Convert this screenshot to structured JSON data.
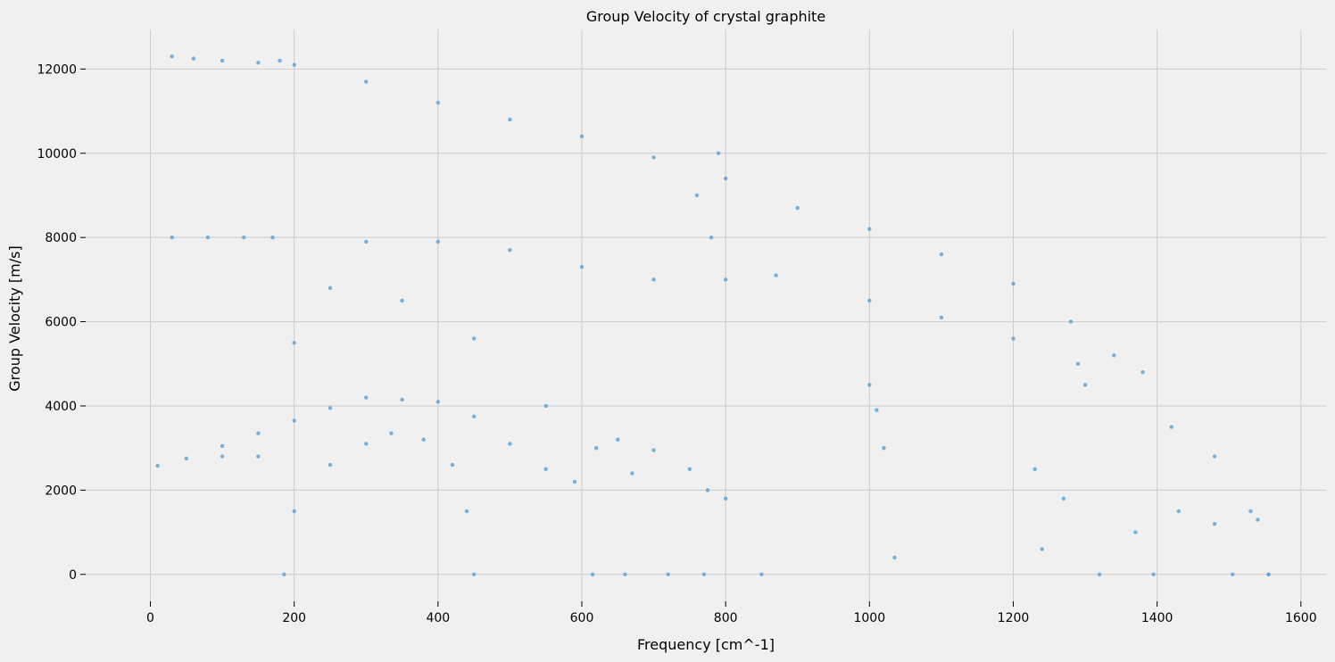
{
  "chart_data": {
    "type": "scatter",
    "title": "Group Velocity of crystal graphite",
    "xlabel": "Frequency [cm^-1]",
    "ylabel": "Group Velocity [m/s]",
    "xlim": [
      -90,
      1635
    ],
    "ylim": [
      -640,
      12940
    ],
    "xticks": [
      0,
      200,
      400,
      600,
      800,
      1000,
      1200,
      1400,
      1600
    ],
    "yticks": [
      0,
      2000,
      4000,
      6000,
      8000,
      10000,
      12000
    ],
    "xtick_labels": [
      "0",
      "200",
      "400",
      "600",
      "800",
      "1000",
      "1200",
      "1400",
      "1600"
    ],
    "ytick_labels": [
      "0",
      "2000",
      "4000",
      "6000",
      "8000",
      "10000",
      "12000"
    ],
    "grid": true,
    "legend": false,
    "marker_color": "#5da5da",
    "series": [
      {
        "values": [
          [
            10,
            2580
          ],
          [
            50,
            2750
          ],
          [
            100,
            3050
          ],
          [
            150,
            3350
          ],
          [
            200,
            3650
          ],
          [
            250,
            3950
          ],
          [
            300,
            4200
          ],
          [
            350,
            4150
          ],
          [
            400,
            4100
          ],
          [
            450,
            3750
          ],
          [
            500,
            3100
          ],
          [
            550,
            2500
          ],
          [
            100,
            2800
          ],
          [
            150,
            2800
          ],
          [
            186,
            0
          ],
          [
            200,
            1500
          ],
          [
            250,
            2600
          ],
          [
            300,
            3100
          ],
          [
            335,
            3350
          ],
          [
            380,
            3200
          ],
          [
            420,
            2600
          ],
          [
            440,
            1500
          ],
          [
            450,
            0
          ],
          [
            590,
            2200
          ],
          [
            650,
            3200
          ],
          [
            700,
            2950
          ],
          [
            750,
            2500
          ],
          [
            800,
            1800
          ],
          [
            850,
            0
          ],
          [
            615,
            0
          ],
          [
            660,
            0
          ],
          [
            670,
            2400
          ],
          [
            720,
            0
          ],
          [
            200,
            12100
          ],
          [
            300,
            11700
          ],
          [
            400,
            11200
          ],
          [
            500,
            10800
          ],
          [
            600,
            10400
          ],
          [
            700,
            9900
          ],
          [
            800,
            9400
          ],
          [
            900,
            8700
          ],
          [
            1000,
            8200
          ],
          [
            1100,
            7600
          ],
          [
            1200,
            6900
          ],
          [
            1280,
            6000
          ],
          [
            200,
            5500
          ],
          [
            300,
            7900
          ],
          [
            400,
            7900
          ],
          [
            500,
            7700
          ],
          [
            600,
            7300
          ],
          [
            700,
            7000
          ],
          [
            800,
            7000
          ],
          [
            870,
            7100
          ],
          [
            1000,
            6500
          ],
          [
            1100,
            6100
          ],
          [
            1200,
            5600
          ],
          [
            1290,
            5000
          ],
          [
            250,
            6800
          ],
          [
            350,
            6500
          ],
          [
            450,
            5600
          ],
          [
            550,
            4000
          ],
          [
            620,
            3000
          ],
          [
            760,
            9000
          ],
          [
            770,
            0
          ],
          [
            775,
            2000
          ],
          [
            780,
            8000
          ],
          [
            790,
            10000
          ],
          [
            1000,
            4500
          ],
          [
            1010,
            3900
          ],
          [
            1020,
            3000
          ],
          [
            1035,
            400
          ],
          [
            1230,
            2500
          ],
          [
            1240,
            600
          ],
          [
            1270,
            1800
          ],
          [
            1300,
            4500
          ],
          [
            1320,
            0
          ],
          [
            1340,
            5200
          ],
          [
            1380,
            4800
          ],
          [
            1395,
            0
          ],
          [
            1420,
            3500
          ],
          [
            1480,
            2800
          ],
          [
            1530,
            1500
          ],
          [
            1555,
            0
          ],
          [
            1370,
            1000
          ],
          [
            1430,
            1500
          ],
          [
            1480,
            1200
          ],
          [
            1505,
            0
          ],
          [
            1540,
            1300
          ],
          [
            1555,
            0
          ],
          [
            30,
            12300
          ],
          [
            60,
            12250
          ],
          [
            100,
            12200
          ],
          [
            150,
            12150
          ],
          [
            180,
            12200
          ],
          [
            30,
            8000
          ],
          [
            80,
            8000
          ],
          [
            130,
            8000
          ],
          [
            170,
            8000
          ]
        ]
      }
    ]
  }
}
